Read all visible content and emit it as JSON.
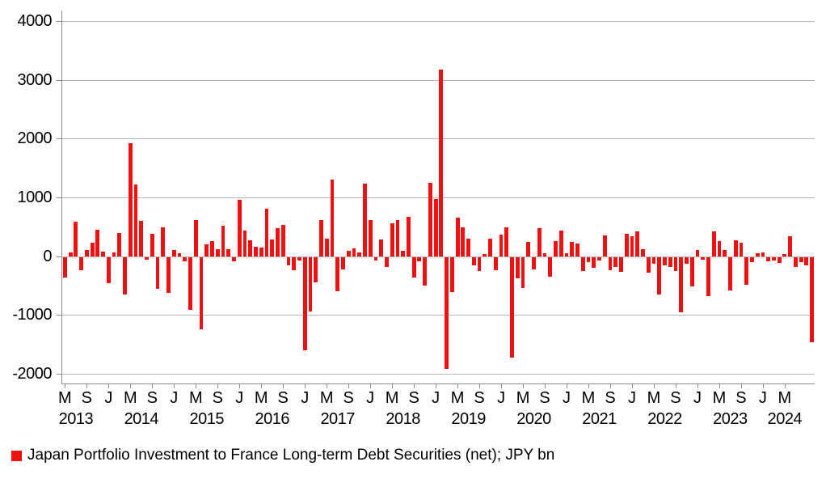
{
  "legend": {
    "label": "Japan Portfolio Investment to France Long-term Debt Securities (net); JPY bn"
  },
  "colors": {
    "bar": "#ed1111",
    "gridline": "#b3b3b3",
    "axis": "#8c8c8c",
    "text": "#000000",
    "background": "#ffffff"
  },
  "chart_data": {
    "type": "bar",
    "title": "",
    "series": [
      {
        "name": "Japan Portfolio Investment to France Long-term Debt Securities (net); JPY bn",
        "color": "#ed1111",
        "values": [
          -350,
          60,
          580,
          -220,
          110,
          230,
          450,
          80,
          -450,
          60,
          400,
          -640,
          1920,
          1220,
          600,
          -50,
          375,
          -540,
          485,
          -610,
          100,
          45,
          -70,
          -900,
          620,
          -1225,
          200,
          260,
          125,
          520,
          115,
          -80,
          955,
          440,
          270,
          165,
          145,
          810,
          285,
          480,
          530,
          -150,
          -220,
          -60,
          -1590,
          -935,
          -430,
          620,
          295,
          1300,
          -585,
          -215,
          90,
          130,
          70,
          1240,
          620,
          -55,
          285,
          -175,
          560,
          615,
          90,
          665,
          -350,
          -70,
          -485,
          1245,
          975,
          3170,
          -1900,
          -600,
          650,
          495,
          300,
          -145,
          -235,
          30,
          300,
          -220,
          365,
          490,
          -1720,
          -360,
          -530,
          240,
          -210,
          475,
          45,
          -335,
          250,
          430,
          50,
          240,
          215,
          -240,
          -85,
          -180,
          -60,
          350,
          -230,
          -165,
          -255,
          385,
          345,
          420,
          125,
          -265,
          -120,
          -635,
          -140,
          -165,
          -245,
          -940,
          -120,
          -495,
          100,
          -45,
          -670,
          420,
          250,
          110,
          -565,
          275,
          230,
          -470,
          -90,
          45,
          65,
          -75,
          -60,
          -105,
          30,
          340,
          -165,
          -90,
          -140,
          -1450
        ]
      }
    ],
    "x_axis": {
      "frequency_hint": "monthly bars, tick every 4th bar",
      "tick_every": 4,
      "tick_labels": [
        "M",
        "S",
        "J",
        "M",
        "S",
        "J",
        "M",
        "S",
        "J",
        "M",
        "S",
        "J",
        "M",
        "S",
        "J",
        "M",
        "S",
        "J",
        "M",
        "S",
        "J",
        "M",
        "S",
        "J",
        "M",
        "S",
        "J",
        "M",
        "S",
        "J",
        "M",
        "S",
        "J",
        "M"
      ],
      "years": [
        "2013",
        "2014",
        "2015",
        "2016",
        "2017",
        "2018",
        "2019",
        "2020",
        "2021",
        "2022",
        "2023",
        "2024"
      ],
      "year_center_bar_index": [
        2,
        14,
        26,
        38,
        50,
        62,
        74,
        86,
        98,
        110,
        122,
        132
      ]
    },
    "y_axis": {
      "min": -2000,
      "max": 4000,
      "tick_labels": [
        "4000",
        "3000",
        "2000",
        "1000",
        "0",
        "-1000",
        "-2000"
      ],
      "tick_values": [
        4000,
        3000,
        2000,
        1000,
        0,
        -1000,
        -2000
      ]
    },
    "grid": true,
    "legend_position": "bottom-left",
    "ylabel": "",
    "xlabel": ""
  }
}
